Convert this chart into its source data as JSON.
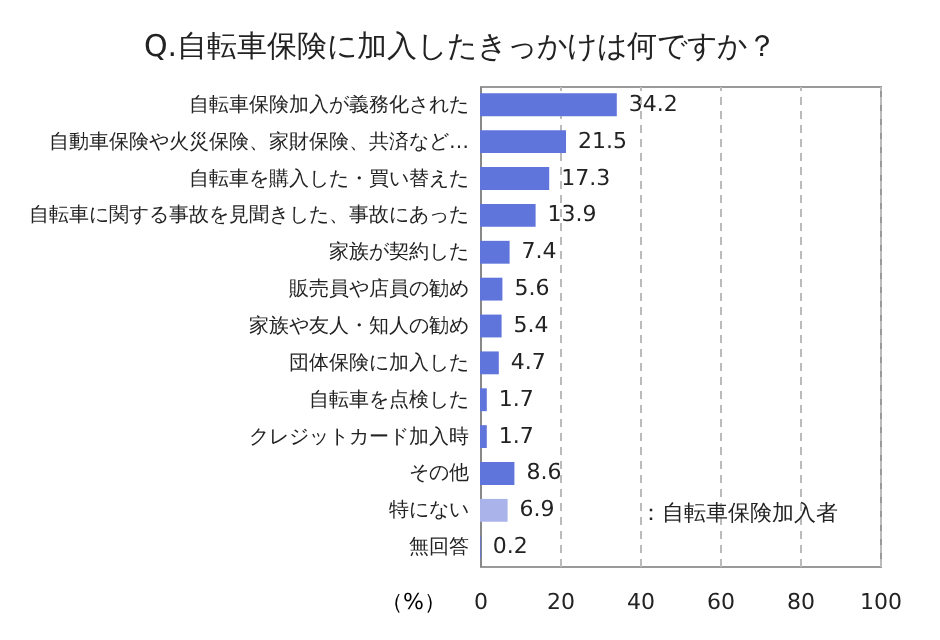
{
  "chart_data": {
    "type": "bar",
    "orientation": "horizontal",
    "title": "Q.自転車保険に加入したきっかけは何ですか？",
    "xlabel": "（%）",
    "categories": [
      "自転車保険加入が義務化された",
      "自動車保険や火災保険、家財保険、共済など…",
      "自転車を購入した・買い替えた",
      "自転車に関する事故を見聞きした、事故にあった",
      "家族が契約した",
      "販売員や店員の勧め",
      "家族や友人・知人の勧め",
      "団体保険に加入した",
      "自転車を点検した",
      "クレジットカード加入時",
      "その他",
      "特にない",
      "無回答"
    ],
    "values": [
      34.2,
      21.5,
      17.3,
      13.9,
      7.4,
      5.6,
      5.4,
      4.7,
      1.7,
      1.7,
      8.6,
      6.9,
      0.2
    ],
    "colors": [
      "#6075dc",
      "#6075dc",
      "#6075dc",
      "#6075dc",
      "#6075dc",
      "#6075dc",
      "#6075dc",
      "#6075dc",
      "#6075dc",
      "#6075dc",
      "#6075dc",
      "#aab4ea",
      "#6075dc"
    ],
    "xlim": [
      0,
      100
    ],
    "xticks": [
      0,
      20,
      40,
      60,
      80,
      100
    ],
    "grid": "x",
    "data_labels": true,
    "annotations": [
      "：自転車保険加入者"
    ]
  }
}
